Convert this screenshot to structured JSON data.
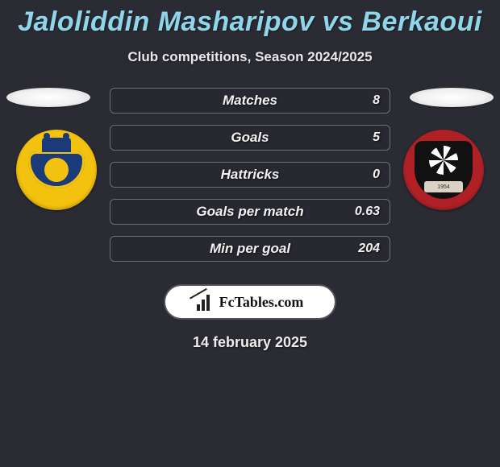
{
  "title": "Jaloliddin Masharipov vs Berkaoui",
  "subtitle": "Club competitions, Season 2024/2025",
  "date": "14 february 2025",
  "brand": "FcTables.com",
  "crest_right_year": "1954",
  "colors": {
    "background": "#2a2b33",
    "title": "#8fd6ea",
    "row_border": "#6d6e75",
    "left_crest_bg": "#f2c20e",
    "left_crest_inner": "#1b3a7a",
    "right_crest_bg": "#b02126",
    "right_crest_shield": "#111111"
  },
  "stats": [
    {
      "label": "Matches",
      "value_right": "8"
    },
    {
      "label": "Goals",
      "value_right": "5"
    },
    {
      "label": "Hattricks",
      "value_right": "0"
    },
    {
      "label": "Goals per match",
      "value_right": "0.63"
    },
    {
      "label": "Min per goal",
      "value_right": "204"
    }
  ]
}
